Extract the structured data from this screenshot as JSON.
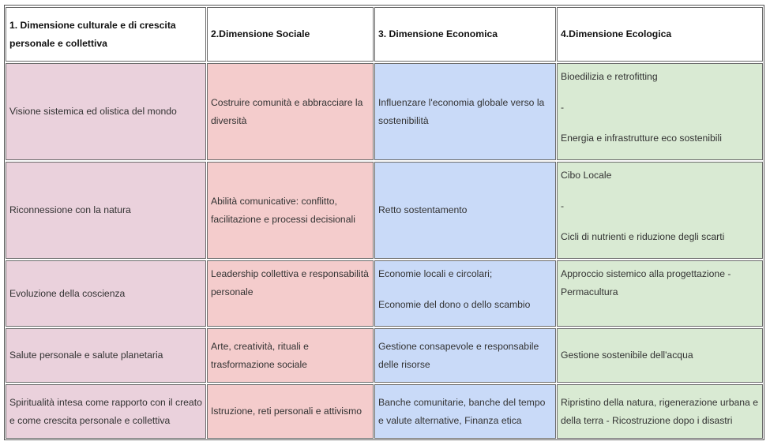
{
  "headers": [
    "1. Dimensione culturale e di crescita personale e collettiva",
    "2.Dimensione Sociale",
    "3. Dimensione Economica",
    "4.Dimensione Ecologica"
  ],
  "rows": [
    {
      "cultural": "Visione sistemica ed olistica del mondo",
      "social": "Costruire comunità e abbracciare la diversità",
      "economic": [
        "Influenzare l'economia globale verso la sostenibilità"
      ],
      "ecological": [
        "Bioedilizia e retrofitting",
        "-",
        "Energia e infrastrutture eco sostenibili"
      ]
    },
    {
      "cultural": "Riconnessione con la natura",
      "social": "Abilità comunicative: conflitto, facilitazione e processi decisionali",
      "economic": [
        "Retto sostentamento"
      ],
      "ecological": [
        "Cibo Locale",
        "-",
        "Cicli di nutrienti e riduzione degli scarti"
      ]
    },
    {
      "cultural": "Evoluzione della coscienza",
      "social": "Leadership collettiva e responsabilità personale",
      "economic": [
        "Economie locali e circolari;",
        "Economie del dono o dello scambio"
      ],
      "ecological": [
        "Approccio sistemico alla progettazione - Permacultura"
      ]
    },
    {
      "cultural": "Salute personale e salute planetaria",
      "social": "Arte, creatività, rituali e trasformazione sociale",
      "economic": [
        "Gestione consapevole e responsabile delle risorse"
      ],
      "ecological": [
        "Gestione sostenibile dell'acqua"
      ]
    },
    {
      "cultural": "Spiritualità intesa come rapporto con il creato e come crescita personale e collettiva",
      "social": "Istruzione, reti personali e attivismo",
      "economic": [
        "Banche comunitarie, banche del tempo e valute alternative, Finanza etica"
      ],
      "ecological": [
        "Ripristino della natura, rigenerazione urbana e della terra - Ricostruzione dopo i disastri"
      ]
    }
  ]
}
